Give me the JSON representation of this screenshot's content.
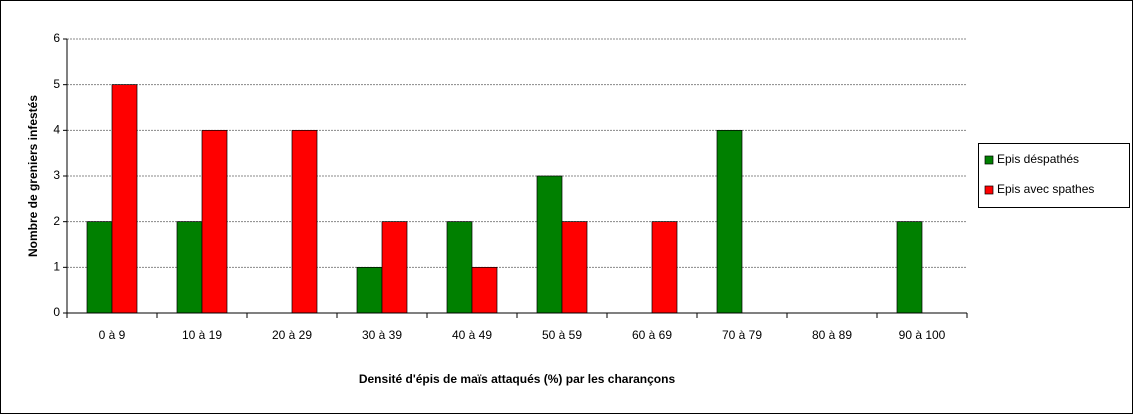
{
  "chart_data": {
    "type": "bar",
    "x_label": "Densité d'épis de maïs attaqués (%) par les charançons",
    "y_label": "Nombre de greniers infestés",
    "categories": [
      "0 à 9",
      "10 à 19",
      "20 à 29",
      "30 à 39",
      "40 à 49",
      "50 à 59",
      "60 à 69",
      "70 à 79",
      "80 à 89",
      "90 à 100"
    ],
    "series": [
      {
        "name": "Epis déspathés",
        "color": "#008000",
        "values": [
          2,
          2,
          0,
          1,
          2,
          3,
          0,
          4,
          0,
          2
        ]
      },
      {
        "name": "Epis avec spathes",
        "color": "#ff0000",
        "values": [
          5,
          4,
          4,
          2,
          1,
          2,
          2,
          0,
          0,
          0
        ]
      }
    ],
    "ylim": [
      0,
      6
    ],
    "yticks": [
      0,
      1,
      2,
      3,
      4,
      5,
      6
    ],
    "grid": true,
    "legend": "right"
  }
}
